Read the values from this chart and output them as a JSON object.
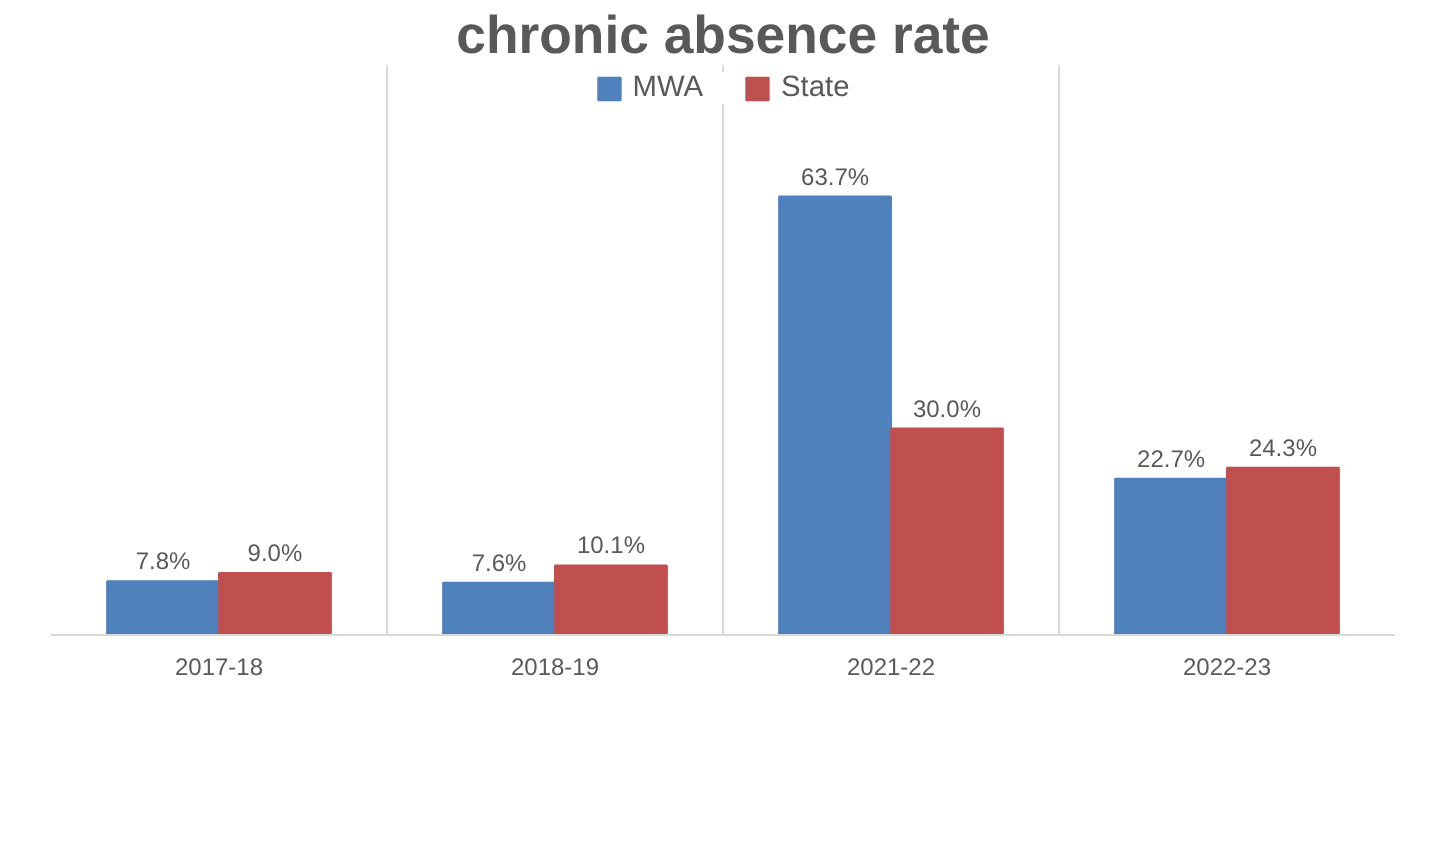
{
  "chart_data": {
    "type": "bar",
    "title": "chronic absence rate",
    "categories": [
      "2017-18",
      "2018-19",
      "2021-22",
      "2022-23"
    ],
    "series": [
      {
        "name": "MWA",
        "color": "#4f81bd",
        "values": [
          7.8,
          7.6,
          63.7,
          22.7
        ],
        "value_labels": [
          "7.8%",
          "7.6%",
          "63.7%",
          "22.7%"
        ]
      },
      {
        "name": "State",
        "color": "#c0504d",
        "values": [
          9.0,
          10.1,
          30.0,
          24.3
        ],
        "value_labels": [
          "9.0%",
          "10.1%",
          "30.0%",
          "24.3%"
        ]
      }
    ],
    "grid": "x",
    "legend": "top"
  }
}
